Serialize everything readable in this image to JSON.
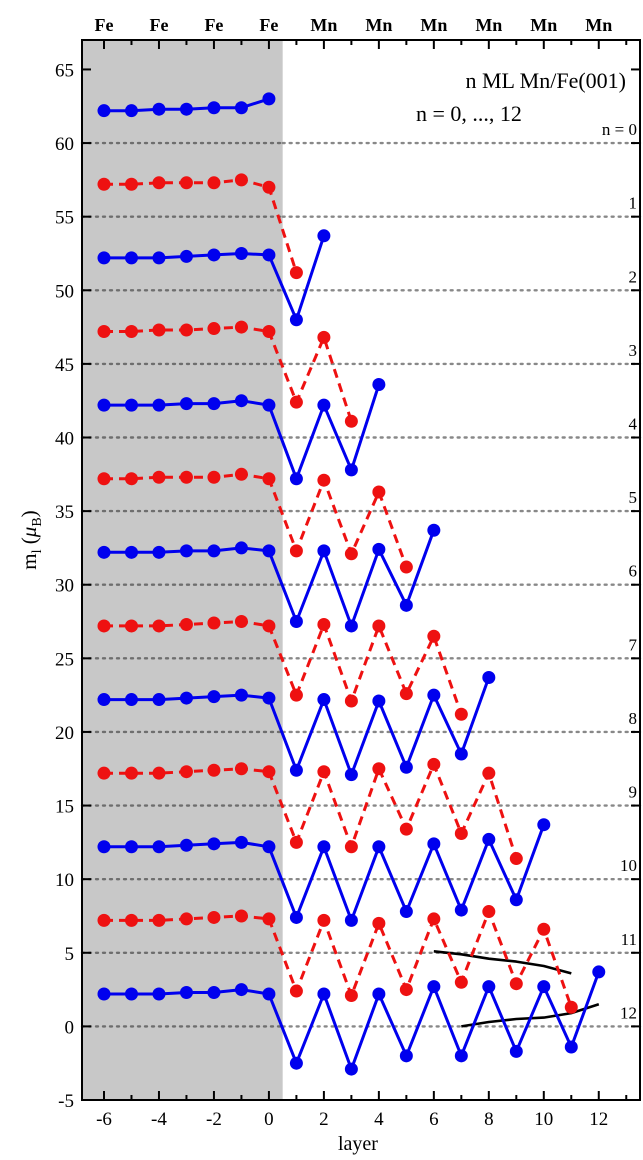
{
  "chart_data": {
    "type": "line",
    "title": "",
    "annotation_lines": [
      "n ML Mn/Fe(001)",
      "n = 0, ..., 12"
    ],
    "xlabel": "layer",
    "ylabel_main": "m",
    "ylabel_sub": "l",
    "ylabel_unit_open": " (",
    "ylabel_mu": "μ",
    "ylabel_mu_sub": "B",
    "ylabel_unit_close": ")",
    "xlim": [
      -6.8,
      13.5
    ],
    "ylim": [
      -5,
      67
    ],
    "x_ticks": [
      -6,
      -4,
      -2,
      0,
      2,
      4,
      6,
      8,
      10,
      12
    ],
    "x_tick_labels": [
      "-6",
      "-4",
      "-2",
      "0",
      "2",
      "4",
      "6",
      "8",
      "10",
      "12"
    ],
    "y_ticks": [
      -5,
      0,
      5,
      10,
      15,
      20,
      25,
      30,
      35,
      40,
      45,
      50,
      55,
      60,
      65
    ],
    "y_tick_labels": [
      "-5",
      "0",
      "5",
      "10",
      "15",
      "20",
      "25",
      "30",
      "35",
      "40",
      "45",
      "50",
      "55",
      "60",
      "65"
    ],
    "top_labels": [
      {
        "x": -6,
        "label": "Fe"
      },
      {
        "x": -4,
        "label": "Fe"
      },
      {
        "x": -2,
        "label": "Fe"
      },
      {
        "x": 0,
        "label": "Fe"
      },
      {
        "x": 2,
        "label": "Mn"
      },
      {
        "x": 4,
        "label": "Mn"
      },
      {
        "x": 6,
        "label": "Mn"
      },
      {
        "x": 8,
        "label": "Mn"
      },
      {
        "x": 10,
        "label": "Mn"
      },
      {
        "x": 12,
        "label": "Mn"
      }
    ],
    "substrate_region": {
      "x_range": [
        -6.8,
        0.5
      ],
      "color": "#c8c8c8"
    },
    "colors": {
      "blue": "#0000ee",
      "red": "#ee1111",
      "gridline": "#888888"
    },
    "offset_labels": [
      {
        "y": 60,
        "label": "n = 0"
      },
      {
        "y": 55,
        "label": "1"
      },
      {
        "y": 50,
        "label": "2"
      },
      {
        "y": 45,
        "label": "3"
      },
      {
        "y": 40,
        "label": "4"
      },
      {
        "y": 35,
        "label": "5"
      },
      {
        "y": 30,
        "label": "6"
      },
      {
        "y": 25,
        "label": "7"
      },
      {
        "y": 20,
        "label": "8"
      },
      {
        "y": 15,
        "label": "9"
      },
      {
        "y": 10,
        "label": "10"
      },
      {
        "y": 5,
        "label": "11"
      },
      {
        "y": 0,
        "label": "12"
      }
    ],
    "series": [
      {
        "n": 0,
        "color": "blue",
        "style": "solid",
        "baseline": 60,
        "x": [
          -6,
          -5,
          -4,
          -3,
          -2,
          -1,
          0
        ],
        "y": [
          62.2,
          62.2,
          62.3,
          62.3,
          62.4,
          62.4,
          63.0
        ]
      },
      {
        "n": 1,
        "color": "red",
        "style": "dashed",
        "baseline": 55,
        "x": [
          -6,
          -5,
          -4,
          -3,
          -2,
          -1,
          0,
          1
        ],
        "y": [
          57.2,
          57.2,
          57.3,
          57.3,
          57.3,
          57.5,
          57.0,
          51.2
        ]
      },
      {
        "n": 2,
        "color": "blue",
        "style": "solid",
        "baseline": 50,
        "x": [
          -6,
          -5,
          -4,
          -3,
          -2,
          -1,
          0,
          1,
          2
        ],
        "y": [
          52.2,
          52.2,
          52.2,
          52.3,
          52.4,
          52.5,
          52.4,
          48.0,
          53.7
        ]
      },
      {
        "n": 3,
        "color": "red",
        "style": "dashed",
        "baseline": 45,
        "x": [
          -6,
          -5,
          -4,
          -3,
          -2,
          -1,
          0,
          1,
          2,
          3
        ],
        "y": [
          47.2,
          47.2,
          47.3,
          47.3,
          47.4,
          47.5,
          47.2,
          42.4,
          46.8,
          41.1
        ]
      },
      {
        "n": 4,
        "color": "blue",
        "style": "solid",
        "baseline": 40,
        "x": [
          -6,
          -5,
          -4,
          -3,
          -2,
          -1,
          0,
          1,
          2,
          3,
          4
        ],
        "y": [
          42.2,
          42.2,
          42.2,
          42.3,
          42.3,
          42.5,
          42.2,
          37.2,
          42.2,
          37.8,
          43.6
        ]
      },
      {
        "n": 5,
        "color": "red",
        "style": "dashed",
        "baseline": 35,
        "x": [
          -6,
          -5,
          -4,
          -3,
          -2,
          -1,
          0,
          1,
          2,
          3,
          4,
          5
        ],
        "y": [
          37.2,
          37.2,
          37.3,
          37.3,
          37.3,
          37.5,
          37.2,
          32.3,
          37.1,
          32.1,
          36.3,
          31.2
        ]
      },
      {
        "n": 6,
        "color": "blue",
        "style": "solid",
        "baseline": 30,
        "x": [
          -6,
          -5,
          -4,
          -3,
          -2,
          -1,
          0,
          1,
          2,
          3,
          4,
          5,
          6
        ],
        "y": [
          32.2,
          32.2,
          32.2,
          32.3,
          32.3,
          32.5,
          32.3,
          27.5,
          32.3,
          27.2,
          32.4,
          28.6,
          33.7
        ]
      },
      {
        "n": 7,
        "color": "red",
        "style": "dashed",
        "baseline": 25,
        "x": [
          -6,
          -5,
          -4,
          -3,
          -2,
          -1,
          0,
          1,
          2,
          3,
          4,
          5,
          6,
          7
        ],
        "y": [
          27.2,
          27.2,
          27.2,
          27.3,
          27.4,
          27.5,
          27.2,
          22.5,
          27.3,
          22.1,
          27.2,
          22.6,
          26.5,
          21.2
        ]
      },
      {
        "n": 8,
        "color": "blue",
        "style": "solid",
        "baseline": 20,
        "x": [
          -6,
          -5,
          -4,
          -3,
          -2,
          -1,
          0,
          1,
          2,
          3,
          4,
          5,
          6,
          7,
          8
        ],
        "y": [
          22.2,
          22.2,
          22.2,
          22.3,
          22.4,
          22.5,
          22.3,
          17.4,
          22.2,
          17.1,
          22.1,
          17.6,
          22.5,
          18.5,
          23.7
        ]
      },
      {
        "n": 9,
        "color": "red",
        "style": "dashed",
        "baseline": 15,
        "x": [
          -6,
          -5,
          -4,
          -3,
          -2,
          -1,
          0,
          1,
          2,
          3,
          4,
          5,
          6,
          7,
          8,
          9
        ],
        "y": [
          17.2,
          17.2,
          17.2,
          17.3,
          17.4,
          17.5,
          17.3,
          12.5,
          17.3,
          12.2,
          17.5,
          13.4,
          17.8,
          13.1,
          17.2,
          11.4
        ]
      },
      {
        "n": 10,
        "color": "blue",
        "style": "solid",
        "baseline": 10,
        "x": [
          -6,
          -5,
          -4,
          -3,
          -2,
          -1,
          0,
          1,
          2,
          3,
          4,
          5,
          6,
          7,
          8,
          9,
          10
        ],
        "y": [
          12.2,
          12.2,
          12.2,
          12.3,
          12.4,
          12.5,
          12.2,
          7.4,
          12.2,
          7.2,
          12.2,
          7.8,
          12.4,
          7.9,
          12.7,
          8.6,
          13.7
        ]
      },
      {
        "n": 11,
        "color": "red",
        "style": "dashed",
        "baseline": 5,
        "x": [
          -6,
          -5,
          -4,
          -3,
          -2,
          -1,
          0,
          1,
          2,
          3,
          4,
          5,
          6,
          7,
          8,
          9,
          10,
          11
        ],
        "y": [
          7.2,
          7.2,
          7.2,
          7.3,
          7.4,
          7.5,
          7.3,
          2.4,
          7.2,
          2.1,
          7.0,
          2.5,
          7.3,
          3.0,
          7.8,
          2.9,
          6.6,
          1.3
        ]
      },
      {
        "n": 12,
        "color": "blue",
        "style": "solid",
        "baseline": 0,
        "x": [
          -6,
          -5,
          -4,
          -3,
          -2,
          -1,
          0,
          1,
          2,
          3,
          4,
          5,
          6,
          7,
          8,
          9,
          10,
          11,
          12
        ],
        "y": [
          2.2,
          2.2,
          2.2,
          2.3,
          2.3,
          2.5,
          2.2,
          -2.5,
          2.2,
          -2.9,
          2.2,
          -2.0,
          2.7,
          -2.0,
          2.7,
          -1.7,
          2.7,
          -1.4,
          3.7
        ]
      }
    ],
    "black_curves": [
      {
        "x": [
          6,
          7,
          8,
          9,
          10,
          11
        ],
        "y": [
          5.1,
          4.9,
          4.6,
          4.4,
          4.1,
          3.6
        ]
      },
      {
        "x": [
          7,
          8,
          9,
          10,
          11,
          12
        ],
        "y": [
          0.0,
          0.3,
          0.5,
          0.6,
          0.9,
          1.5
        ]
      }
    ]
  }
}
